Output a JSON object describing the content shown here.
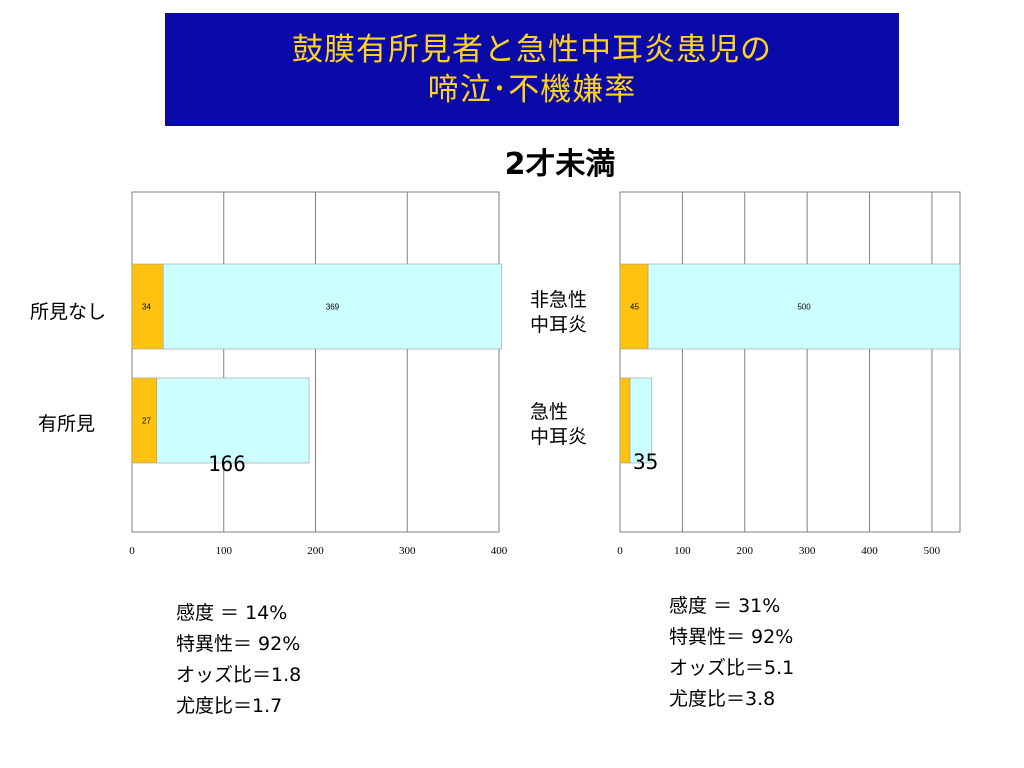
{
  "title": {
    "line1": "鼓膜有所見者と急性中耳炎患児の",
    "line2": "啼泣･不機嫌率"
  },
  "subtitle": "2才未満",
  "colors": {
    "title_bg": "#0a0aa8",
    "title_text": "#ffd21f",
    "series_a": "#ffc20e",
    "series_b": "#ccffff",
    "grid": "#808080"
  },
  "chart_data": [
    {
      "type": "bar",
      "orientation": "horizontal",
      "stacked": true,
      "categories": [
        "所見なし",
        "有所見"
      ],
      "series": [
        {
          "values": [
            34,
            27
          ],
          "labels": [
            "34",
            "27"
          ]
        },
        {
          "values": [
            369,
            166
          ],
          "labels": [
            "369",
            ""
          ]
        }
      ],
      "xlim": [
        0,
        400
      ],
      "xticks": [
        0,
        100,
        200,
        300,
        400
      ],
      "grid": true,
      "annotation": "166"
    },
    {
      "type": "bar",
      "orientation": "horizontal",
      "stacked": true,
      "categories": [
        "非急性\n中耳炎",
        "急性\n中耳炎"
      ],
      "series": [
        {
          "values": [
            45,
            16
          ],
          "labels": [
            "45",
            ""
          ]
        },
        {
          "values": [
            500,
            35
          ],
          "labels": [
            "500",
            ""
          ]
        }
      ],
      "xlim": [
        0,
        545
      ],
      "xticks": [
        0,
        100,
        200,
        300,
        400,
        500
      ],
      "grid": true,
      "annotation": "35"
    }
  ],
  "stats_left": [
    "感度 ＝ 14%",
    "特異性＝ 92%",
    "オッズ比＝1.8",
    "尤度比＝1.7"
  ],
  "stats_right": [
    "感度 ＝ 31%",
    "特異性＝ 92%",
    "オッズ比＝5.1",
    "尤度比＝3.8"
  ]
}
